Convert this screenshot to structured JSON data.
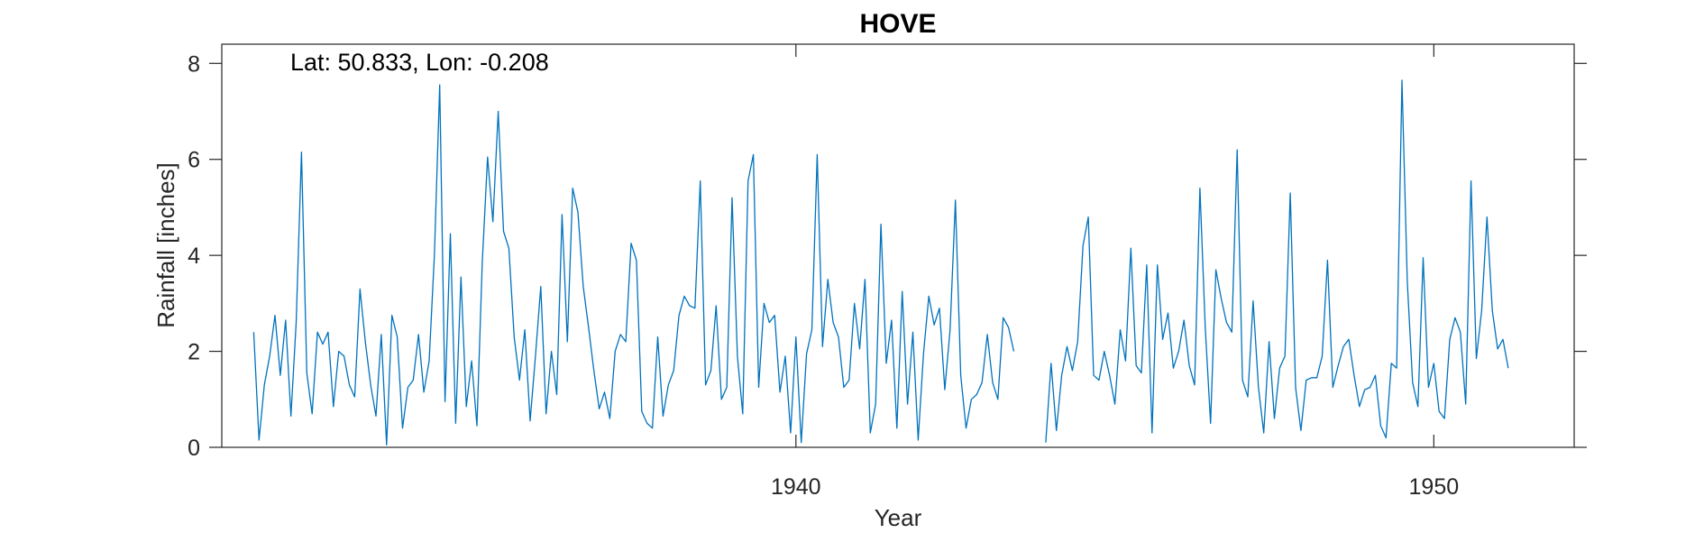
{
  "chart_data": {
    "type": "line",
    "title": "HOVE",
    "xlabel": "Year",
    "ylabel": "Rainfall [inches]",
    "annotation": "Lat: 50.833, Lon: -0.208",
    "xlim": [
      1931.0,
      1952.2
    ],
    "ylim": [
      0,
      8.4
    ],
    "xticks": [
      1940,
      1950
    ],
    "yticks": [
      0,
      2,
      4,
      6,
      8
    ],
    "grid": false,
    "series_color": "#0072bd",
    "x_start": 1931.5,
    "x_step_months": 1,
    "values": [
      2.4,
      0.15,
      1.3,
      1.9,
      2.75,
      1.5,
      2.65,
      0.65,
      2.6,
      6.15,
      1.55,
      0.7,
      2.4,
      2.15,
      2.4,
      0.85,
      2.0,
      1.9,
      1.3,
      1.05,
      3.3,
      2.2,
      1.3,
      0.65,
      2.35,
      0.05,
      2.75,
      2.3,
      0.4,
      1.25,
      1.4,
      2.35,
      1.15,
      1.8,
      4.0,
      7.55,
      0.95,
      4.45,
      0.5,
      3.55,
      0.85,
      1.8,
      0.45,
      3.85,
      6.05,
      4.7,
      7.0,
      4.5,
      4.15,
      2.3,
      1.4,
      2.45,
      0.55,
      1.9,
      3.35,
      0.7,
      2.0,
      1.1,
      4.85,
      2.2,
      5.4,
      4.9,
      3.35,
      2.5,
      1.6,
      0.8,
      1.15,
      0.6,
      2.0,
      2.35,
      2.2,
      4.25,
      3.9,
      0.75,
      0.5,
      0.4,
      2.3,
      0.65,
      1.3,
      1.6,
      2.75,
      3.15,
      2.95,
      2.9,
      5.55,
      1.3,
      1.6,
      2.95,
      1.0,
      1.25,
      5.2,
      1.9,
      0.7,
      5.55,
      6.1,
      1.25,
      3.0,
      2.6,
      2.75,
      1.15,
      1.9,
      0.3,
      2.3,
      0.1,
      1.95,
      2.45,
      6.1,
      2.1,
      3.5,
      2.6,
      2.3,
      1.25,
      1.4,
      3.0,
      2.05,
      3.5,
      0.3,
      0.9,
      4.65,
      1.75,
      2.65,
      0.4,
      3.25,
      0.9,
      2.4,
      0.15,
      1.95,
      3.15,
      2.55,
      2.9,
      1.2,
      2.45,
      5.15,
      1.5,
      0.4,
      1.0,
      1.1,
      1.35,
      2.35,
      1.35,
      1.0,
      2.7,
      2.5,
      2.0,
      null,
      null,
      null,
      null,
      null,
      0.1,
      1.75,
      0.35,
      1.5,
      2.1,
      1.6,
      2.2,
      4.2,
      4.8,
      1.5,
      1.4,
      2.0,
      1.5,
      0.9,
      2.45,
      1.8,
      4.15,
      1.7,
      1.55,
      3.8,
      0.3,
      3.8,
      2.25,
      2.8,
      1.65,
      2.0,
      2.65,
      1.7,
      1.3,
      5.4,
      2.5,
      0.5,
      3.7,
      3.1,
      2.6,
      2.4,
      6.2,
      1.4,
      1.05,
      3.05,
      1.25,
      0.3,
      2.2,
      0.6,
      1.65,
      1.9,
      5.3,
      1.25,
      0.35,
      1.4,
      1.45,
      1.45,
      1.9,
      3.9,
      1.25,
      1.7,
      2.1,
      2.25,
      1.5,
      0.85,
      1.2,
      1.25,
      1.5,
      0.45,
      0.2,
      1.75,
      1.65,
      7.65,
      3.45,
      1.35,
      0.85,
      3.95,
      1.25,
      1.75,
      0.75,
      0.6,
      2.25,
      2.7,
      2.4,
      0.9,
      5.55,
      1.85,
      2.85,
      4.8,
      2.85,
      2.05,
      2.25,
      1.65
    ]
  }
}
